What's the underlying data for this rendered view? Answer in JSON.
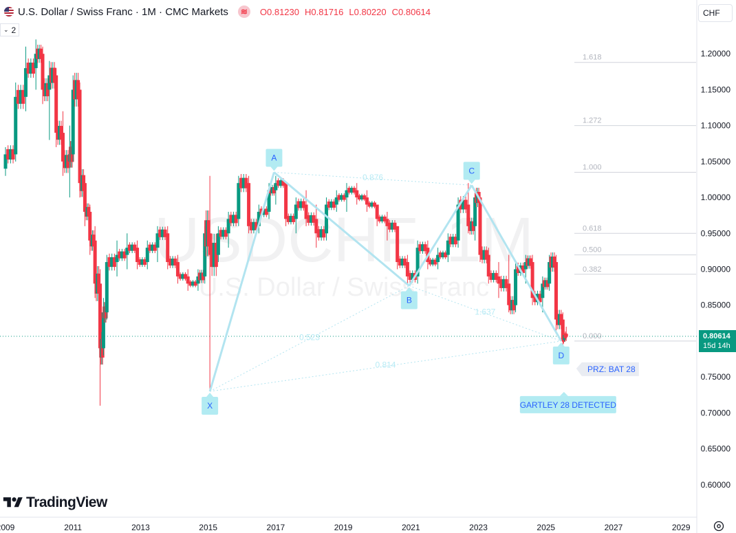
{
  "header": {
    "symbol_title": "U.S. Dollar / Swiss Franc · 1M · CMC Markets",
    "market_badge": "≋",
    "ohlc": [
      {
        "k": "O",
        "v": "0.81230"
      },
      {
        "k": "H",
        "v": "0.81716"
      },
      {
        "k": "L",
        "v": "0.80220"
      },
      {
        "k": "C",
        "v": "0.80614"
      }
    ],
    "indicator_count": "2",
    "currency": "CHF"
  },
  "watermark": {
    "ticker": "USDCHF, 1M",
    "name": "U.S. Dollar / Swiss Franc"
  },
  "logo_text": "TradingView",
  "price_tag": {
    "price": "0.80614",
    "countdown": "15d 14h"
  },
  "colors": {
    "up": "#089981",
    "down": "#f23645",
    "pattern": "#b2e4f0",
    "pattern_label": "#b8ebf5"
  },
  "chart_data": {
    "type": "candlestick",
    "symbol": "USDCHF",
    "interval": "1M",
    "x_axis": {
      "range": [
        2009,
        2029.2
      ],
      "tick_labels": [
        "2009",
        "2011",
        "2013",
        "2015",
        "2017",
        "2019",
        "2021",
        "2023",
        "2025",
        "2027",
        "2029"
      ]
    },
    "y_axis": {
      "range": [
        0.55,
        1.25
      ],
      "tick_labels": [
        "1.20000",
        "1.15000",
        "1.10000",
        "1.05000",
        "1.00000",
        "0.95000",
        "0.90000",
        "0.85000",
        "0.80000",
        "0.75000",
        "0.70000",
        "0.65000",
        "0.60000"
      ]
    },
    "last_price": 0.80614,
    "ohlc_points": [
      [
        2009.0,
        1.04,
        1.07,
        1.03,
        1.06
      ],
      [
        2009.3,
        1.06,
        1.16,
        1.05,
        1.14
      ],
      [
        2009.6,
        1.14,
        1.21,
        1.12,
        1.18
      ],
      [
        2009.9,
        1.18,
        1.22,
        1.15,
        1.2
      ],
      [
        2010.1,
        1.2,
        1.21,
        1.13,
        1.15
      ],
      [
        2010.3,
        1.15,
        1.19,
        1.08,
        1.17
      ],
      [
        2010.5,
        1.17,
        1.18,
        1.07,
        1.09
      ],
      [
        2010.7,
        1.09,
        1.12,
        1.03,
        1.05
      ],
      [
        2010.9,
        1.05,
        1.1,
        1.0,
        1.06
      ],
      [
        2011.0,
        1.06,
        1.17,
        1.05,
        1.15
      ],
      [
        2011.2,
        1.15,
        1.16,
        1.0,
        1.02
      ],
      [
        2011.35,
        1.02,
        1.03,
        0.96,
        0.98
      ],
      [
        2011.5,
        0.98,
        0.99,
        0.92,
        0.94
      ],
      [
        2011.65,
        0.94,
        0.96,
        0.86,
        0.88
      ],
      [
        2011.8,
        0.88,
        0.9,
        0.71,
        0.79
      ],
      [
        2011.9,
        0.79,
        0.86,
        0.78,
        0.84
      ],
      [
        2012.0,
        0.84,
        0.92,
        0.83,
        0.91
      ],
      [
        2012.3,
        0.91,
        0.94,
        0.89,
        0.92
      ],
      [
        2012.6,
        0.92,
        0.95,
        0.9,
        0.93
      ],
      [
        2012.9,
        0.93,
        0.94,
        0.9,
        0.91
      ],
      [
        2013.2,
        0.91,
        0.94,
        0.9,
        0.93
      ],
      [
        2013.5,
        0.93,
        0.96,
        0.91,
        0.95
      ],
      [
        2013.8,
        0.95,
        0.96,
        0.9,
        0.91
      ],
      [
        2014.1,
        0.91,
        0.92,
        0.88,
        0.89
      ],
      [
        2014.4,
        0.89,
        0.9,
        0.87,
        0.88
      ],
      [
        2014.7,
        0.88,
        0.9,
        0.87,
        0.89
      ],
      [
        2014.9,
        0.89,
        0.96,
        0.88,
        0.95
      ],
      [
        2015.05,
        0.95,
        1.03,
        0.73,
        0.92
      ],
      [
        2015.3,
        0.92,
        0.96,
        0.91,
        0.95
      ],
      [
        2015.6,
        0.95,
        0.98,
        0.93,
        0.97
      ],
      [
        2015.9,
        0.97,
        1.03,
        0.96,
        1.02
      ],
      [
        2016.2,
        1.02,
        1.03,
        0.95,
        0.96
      ],
      [
        2016.5,
        0.96,
        0.99,
        0.95,
        0.98
      ],
      [
        2016.8,
        0.98,
        1.02,
        0.97,
        1.01
      ],
      [
        2017.0,
        1.01,
        1.03,
        0.99,
        1.02
      ],
      [
        2017.3,
        1.02,
        1.0,
        0.96,
        0.97
      ],
      [
        2017.6,
        0.97,
        1.0,
        0.95,
        0.99
      ],
      [
        2017.9,
        0.99,
        1.01,
        0.96,
        0.97
      ],
      [
        2018.2,
        0.97,
        0.99,
        0.93,
        0.95
      ],
      [
        2018.5,
        0.95,
        1.0,
        0.94,
        0.99
      ],
      [
        2018.8,
        0.99,
        1.01,
        0.98,
        1.0
      ],
      [
        2019.1,
        1.0,
        1.02,
        0.98,
        1.01
      ],
      [
        2019.4,
        1.01,
        1.02,
        0.99,
        1.0
      ],
      [
        2019.7,
        1.0,
        1.01,
        0.98,
        0.99
      ],
      [
        2020.0,
        0.99,
        0.99,
        0.96,
        0.97
      ],
      [
        2020.3,
        0.97,
        0.98,
        0.94,
        0.96
      ],
      [
        2020.6,
        0.96,
        0.96,
        0.9,
        0.91
      ],
      [
        2020.9,
        0.91,
        0.92,
        0.88,
        0.89
      ],
      [
        2021.2,
        0.89,
        0.94,
        0.88,
        0.93
      ],
      [
        2021.5,
        0.93,
        0.94,
        0.9,
        0.91
      ],
      [
        2021.8,
        0.91,
        0.93,
        0.9,
        0.92
      ],
      [
        2022.1,
        0.92,
        0.95,
        0.91,
        0.94
      ],
      [
        2022.4,
        0.94,
        1.0,
        0.93,
        0.99
      ],
      [
        2022.7,
        0.99,
        1.02,
        0.95,
        0.96
      ],
      [
        2022.9,
        0.96,
        1.01,
        0.94,
        1.0
      ],
      [
        2023.05,
        1.0,
        1.0,
        0.91,
        0.92
      ],
      [
        2023.3,
        0.92,
        0.93,
        0.88,
        0.89
      ],
      [
        2023.6,
        0.89,
        0.91,
        0.86,
        0.88
      ],
      [
        2023.9,
        0.88,
        0.92,
        0.84,
        0.85
      ],
      [
        2024.1,
        0.85,
        0.91,
        0.84,
        0.9
      ],
      [
        2024.4,
        0.9,
        0.92,
        0.88,
        0.91
      ],
      [
        2024.6,
        0.91,
        0.92,
        0.85,
        0.86
      ],
      [
        2024.9,
        0.86,
        0.89,
        0.84,
        0.88
      ],
      [
        2025.1,
        0.88,
        0.92,
        0.87,
        0.91
      ],
      [
        2025.3,
        0.91,
        0.92,
        0.81,
        0.83
      ],
      [
        2025.5,
        0.83,
        0.84,
        0.79,
        0.8
      ],
      [
        2025.6,
        0.81,
        0.82,
        0.8,
        0.806
      ]
    ],
    "harmonic_pattern": {
      "points": [
        {
          "label": "X",
          "x": 2015.05,
          "y": 0.73
        },
        {
          "label": "A",
          "x": 2016.95,
          "y": 1.035
        },
        {
          "label": "B",
          "x": 2020.95,
          "y": 0.877
        },
        {
          "label": "C",
          "x": 2022.8,
          "y": 1.017
        },
        {
          "label": "D",
          "x": 2025.45,
          "y": 0.8
        }
      ],
      "ratio_labels": [
        "0.876",
        "0.523",
        "1.637",
        "0.814"
      ],
      "fib_levels": [
        "1.618",
        "1.272",
        "1.000",
        "0.618",
        "0.500",
        "0.382",
        "0.000"
      ],
      "fib_prices": [
        1.188,
        1.1,
        1.035,
        0.95,
        0.92,
        0.893,
        0.8
      ],
      "prz_label": "PRZ: BAT 28",
      "detected_label": "GARTLEY 28 DETECTED"
    }
  }
}
